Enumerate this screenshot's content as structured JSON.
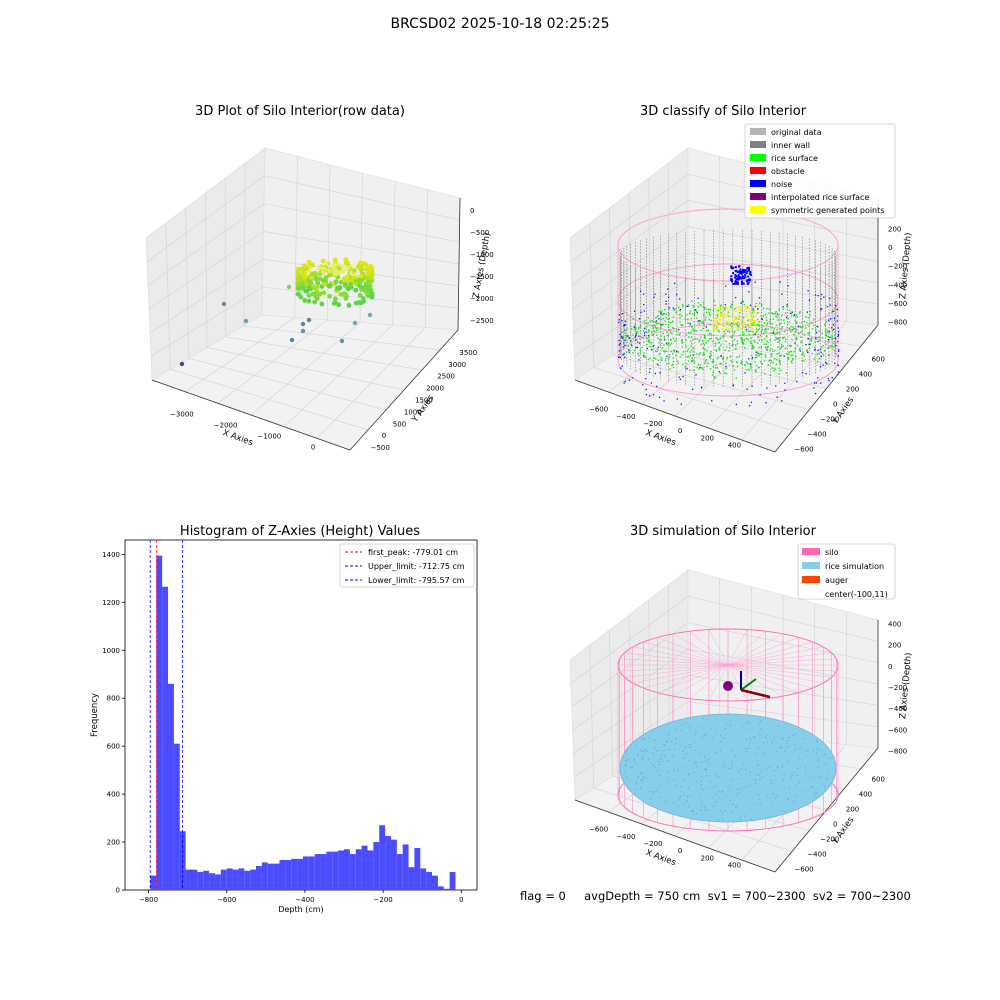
{
  "figure": {
    "suptitle": "BRCSD02 2025-10-18 02:25:25",
    "footer": "flag = 0     avgDepth = 750 cm  sv1 = 700~2300  sv2 = 700~2300"
  },
  "chart_data": [
    {
      "type": "scatter",
      "panel": "3d-raw",
      "title": "3D Plot of Silo Interior(row data)",
      "xlabel": "X Axies",
      "ylabel": "Y Axies",
      "zlabel": "Z Axies (Depth)",
      "x_ticks": [
        "−3000",
        "−2000",
        "−1000",
        "0"
      ],
      "y_ticks": [
        "−500",
        "0",
        "500",
        "1000",
        "1500",
        "2000",
        "2500",
        "3000",
        "3500"
      ],
      "z_ticks": [
        "0",
        "−500",
        "−1000",
        "−1500",
        "−2000",
        "−2500"
      ],
      "xlim": [
        -3500,
        500
      ],
      "ylim": [
        -600,
        3600
      ],
      "zlim": [
        -2800,
        100
      ]
    },
    {
      "type": "scatter",
      "panel": "3d-classify",
      "title": "3D classify of Silo Interior",
      "xlabel": "X Axies",
      "ylabel": "Y Axies",
      "zlabel": "Z Axies (Depth)",
      "x_ticks": [
        "−600",
        "−400",
        "−200",
        "0",
        "200",
        "400"
      ],
      "y_ticks": [
        "−600",
        "−400",
        "−200",
        "0",
        "200",
        "400",
        "600"
      ],
      "z_ticks": [
        "200",
        "0",
        "−200",
        "−400",
        "−600",
        "−800"
      ],
      "legend": [
        {
          "name": "original data",
          "color": "#b4b4b4"
        },
        {
          "name": "inner wall",
          "color": "#808080"
        },
        {
          "name": "rice surface",
          "color": "#00ff00"
        },
        {
          "name": "obstacle",
          "color": "#ff0000"
        },
        {
          "name": "noise",
          "color": "#0000ff"
        },
        {
          "name": "interpolated rice surface",
          "color": "#800080"
        },
        {
          "name": "symmetric generated points",
          "color": "#ffff00"
        }
      ],
      "legend_position": "upper-right"
    },
    {
      "type": "bar",
      "panel": "histogram",
      "title": "Histogram of Z-Axies (Height) Values",
      "xlabel": "Depth (cm)",
      "ylabel": "Frequency",
      "xlim": [
        -860,
        40
      ],
      "ylim": [
        0,
        1460
      ],
      "x_ticks": [
        -800,
        -600,
        -400,
        -200,
        0
      ],
      "y_ticks": [
        0,
        200,
        400,
        600,
        800,
        1000,
        1200,
        1400
      ],
      "bin_edges": [
        -810,
        -795,
        -780,
        -765,
        -750,
        -735,
        -720,
        -705,
        -690,
        -675,
        -660,
        -645,
        -630,
        -615,
        -600,
        -585,
        -570,
        -555,
        -540,
        -525,
        -510,
        -495,
        -480,
        -465,
        -450,
        -435,
        -420,
        -405,
        -390,
        -375,
        -360,
        -345,
        -330,
        -315,
        -300,
        -285,
        -270,
        -255,
        -240,
        -225,
        -210,
        -195,
        -180,
        -165,
        -150,
        -135,
        -120,
        -105,
        -90,
        -75,
        -60,
        -45,
        -30,
        -15,
        0
      ],
      "counts": [
        3,
        60,
        1395,
        1265,
        860,
        610,
        245,
        85,
        85,
        75,
        80,
        70,
        65,
        85,
        90,
        85,
        90,
        80,
        85,
        100,
        115,
        110,
        110,
        125,
        125,
        130,
        130,
        140,
        140,
        150,
        150,
        160,
        160,
        165,
        170,
        150,
        170,
        185,
        165,
        200,
        270,
        225,
        210,
        150,
        190,
        95,
        175,
        90,
        75,
        60,
        15,
        5,
        75,
        0
      ],
      "bar_color": "#4b4bff",
      "vlines": [
        {
          "label": "first_peak: -779.01 cm",
          "value": -779.01,
          "color": "#ff0000"
        },
        {
          "label": "Upper_limit: -712.75 cm",
          "value": -712.75,
          "color": "#0000ff"
        },
        {
          "label": "Lower_limit: -795.57 cm",
          "value": -795.57,
          "color": "#0000ff"
        }
      ],
      "legend_position": "upper-right"
    },
    {
      "type": "scatter",
      "panel": "3d-simulation",
      "title": "3D simulation of Silo Interior",
      "xlabel": "X Axies",
      "ylabel": "Y Axies",
      "zlabel": "Z Axies (Depth)",
      "x_ticks": [
        "−600",
        "−400",
        "−200",
        "0",
        "200",
        "400"
      ],
      "y_ticks": [
        "−600",
        "−400",
        "−200",
        "0",
        "200",
        "400",
        "600"
      ],
      "z_ticks": [
        "400",
        "200",
        "0",
        "−200",
        "−400",
        "−600",
        "−800"
      ],
      "legend": [
        {
          "name": "silo",
          "color": "#ff69b4"
        },
        {
          "name": "rice simulation",
          "color": "#87ceeb"
        },
        {
          "name": "auger",
          "color": "#ff4500"
        },
        {
          "name": "center(-100,11)",
          "color": ""
        }
      ],
      "legend_position": "upper-right"
    }
  ]
}
